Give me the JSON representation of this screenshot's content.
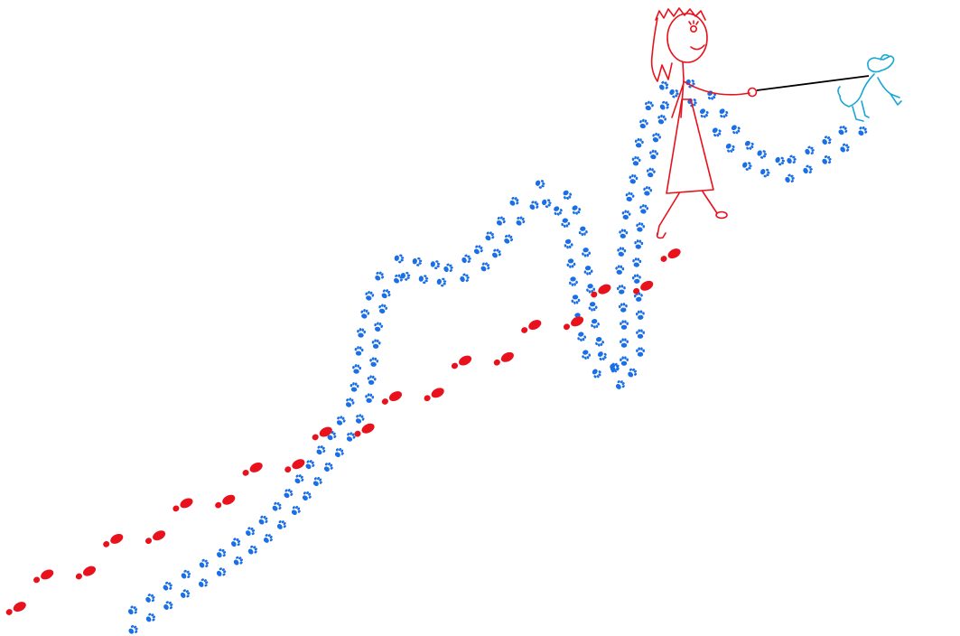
{
  "scene": {
    "colors": {
      "background": "#ffffff",
      "pawprints": "#1a6fe6",
      "footprints": "#e8111c",
      "person": "#e8111c",
      "dog": "#1aa6d6",
      "leash": "#000000"
    },
    "elements": {
      "person": "stick-figure-woman",
      "dog": "small-dog-on-leash",
      "trail_human": "red-shoe-footprints",
      "trail_dog": "blue-paw-prints"
    }
  }
}
